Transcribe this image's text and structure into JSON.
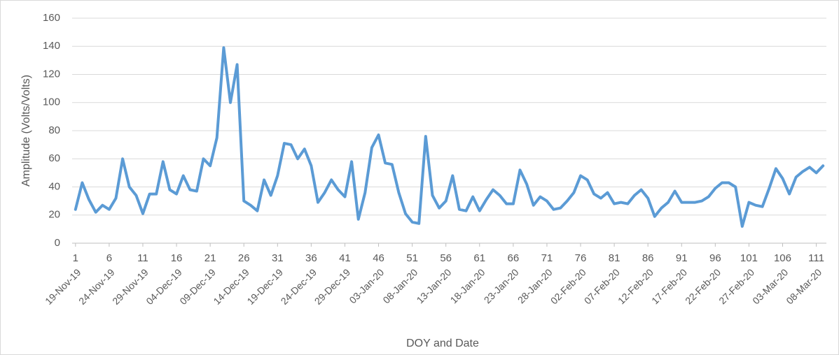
{
  "chart_data": {
    "type": "line",
    "x_title": "DOY and Date",
    "y_title": "Amplitude (Volts/Volts)",
    "x": [
      1,
      2,
      3,
      4,
      5,
      6,
      7,
      8,
      9,
      10,
      11,
      12,
      13,
      14,
      15,
      16,
      17,
      18,
      19,
      20,
      21,
      22,
      23,
      24,
      25,
      26,
      27,
      28,
      29,
      30,
      31,
      32,
      33,
      34,
      35,
      36,
      37,
      38,
      39,
      40,
      41,
      42,
      43,
      44,
      45,
      46,
      47,
      48,
      49,
      50,
      51,
      52,
      53,
      54,
      55,
      56,
      57,
      58,
      59,
      60,
      61,
      62,
      63,
      64,
      65,
      66,
      67,
      68,
      69,
      70,
      71,
      72,
      73,
      74,
      75,
      76,
      77,
      78,
      79,
      80,
      81,
      82,
      83,
      84,
      85,
      86,
      87,
      88,
      89,
      90,
      91,
      92,
      93,
      94,
      95,
      96,
      97,
      98,
      99,
      100,
      101,
      102,
      103,
      104,
      105,
      106,
      107,
      108,
      109,
      110,
      111,
      112
    ],
    "series": [
      {
        "color": "#5b9bd5",
        "values": [
          24,
          43,
          31,
          22,
          27,
          24,
          32,
          60,
          40,
          34,
          21,
          35,
          35,
          58,
          38,
          35,
          48,
          38,
          37,
          60,
          55,
          75,
          139,
          100,
          127,
          30,
          27,
          23,
          45,
          34,
          48,
          71,
          70,
          60,
          67,
          55,
          29,
          36,
          45,
          38,
          33,
          58,
          17,
          36,
          68,
          77,
          57,
          56,
          36,
          21,
          15,
          14,
          76,
          34,
          25,
          30,
          48,
          24,
          23,
          33,
          23,
          31,
          38,
          34,
          28,
          28,
          52,
          42,
          27,
          33,
          30,
          24,
          25,
          30,
          36,
          48,
          45,
          35,
          32,
          36,
          28,
          29,
          28,
          34,
          38,
          32,
          19,
          25,
          29,
          37,
          29,
          29,
          29,
          30,
          33,
          39,
          43,
          43,
          40,
          12,
          29,
          27,
          26,
          39,
          53,
          46,
          35,
          47,
          51,
          54,
          50,
          55
        ]
      }
    ],
    "xlim": [
      0.5,
      112.5
    ],
    "xticks": [
      1,
      6,
      11,
      16,
      21,
      26,
      31,
      36,
      41,
      46,
      51,
      56,
      61,
      66,
      71,
      76,
      81,
      86,
      91,
      96,
      101,
      106,
      111
    ],
    "date_labels": [
      "19-Nov-19",
      "24-Nov-19",
      "29-Nov-19",
      "04-Dec-19",
      "09-Dec-19",
      "14-Dec-19",
      "19-Dec-19",
      "24-Dec-19",
      "29-Dec-19",
      "03-Jan-20",
      "08-Jan-20",
      "13-Jan-20",
      "18-Jan-20",
      "23-Jan-20",
      "28-Jan-20",
      "02-Feb-20",
      "07-Feb-20",
      "12-Feb-20",
      "17-Feb-20",
      "22-Feb-20",
      "27-Feb-20",
      "03-Mar-20",
      "08-Mar-20"
    ],
    "ylim": [
      0,
      160
    ],
    "yticks": [
      0,
      20,
      40,
      60,
      80,
      100,
      120,
      140,
      160
    ],
    "grid": true
  }
}
